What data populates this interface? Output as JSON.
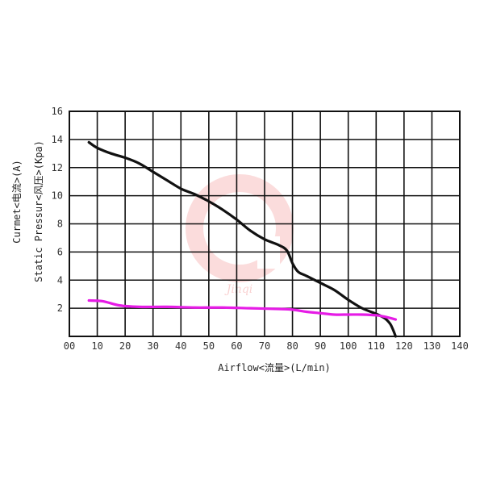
{
  "chart_data": {
    "type": "line",
    "xlabel": "Airflow<流量>(L/min)",
    "ylabel": "Static Pressur<风压>(Kpa)",
    "ylabel2": "Curmet<电流>(A)",
    "xlim": [
      0,
      140
    ],
    "ylim": [
      0,
      16
    ],
    "x_ticks": [
      "00",
      "10",
      "20",
      "30",
      "40",
      "50",
      "60",
      "70",
      "80",
      "90",
      "100",
      "110",
      "120",
      "130",
      "140"
    ],
    "y_ticks": [
      "16",
      "14",
      "12",
      "10",
      "8",
      "6",
      "4",
      "2"
    ],
    "x_grid_step": 10,
    "y_grid_step": 2,
    "grid": true,
    "watermark": "Jinqi",
    "colors": {
      "pressure": "#111111",
      "current": "#e61ce6",
      "ylabel2": "#e61ce6",
      "watermark": "#f08080"
    },
    "series": [
      {
        "key": "pressure",
        "values": [
          [
            7,
            13.8
          ],
          [
            10,
            13.4
          ],
          [
            15,
            13.0
          ],
          [
            20,
            12.7
          ],
          [
            25,
            12.3
          ],
          [
            30,
            11.7
          ],
          [
            35,
            11.1
          ],
          [
            40,
            10.5
          ],
          [
            45,
            10.1
          ],
          [
            50,
            9.6
          ],
          [
            55,
            9.0
          ],
          [
            60,
            8.3
          ],
          [
            65,
            7.5
          ],
          [
            70,
            6.9
          ],
          [
            75,
            6.5
          ],
          [
            78,
            6.1
          ],
          [
            80,
            5.2
          ],
          [
            82,
            4.6
          ],
          [
            85,
            4.3
          ],
          [
            90,
            3.8
          ],
          [
            95,
            3.3
          ],
          [
            100,
            2.6
          ],
          [
            105,
            2.0
          ],
          [
            110,
            1.6
          ],
          [
            113,
            1.3
          ],
          [
            115,
            0.9
          ],
          [
            116,
            0.5
          ],
          [
            117,
            0.0
          ]
        ]
      },
      {
        "key": "current",
        "values": [
          [
            7,
            2.55
          ],
          [
            12,
            2.5
          ],
          [
            18,
            2.2
          ],
          [
            25,
            2.1
          ],
          [
            35,
            2.1
          ],
          [
            45,
            2.05
          ],
          [
            55,
            2.05
          ],
          [
            65,
            2.0
          ],
          [
            75,
            1.95
          ],
          [
            80,
            1.9
          ],
          [
            85,
            1.75
          ],
          [
            90,
            1.65
          ],
          [
            95,
            1.55
          ],
          [
            100,
            1.55
          ],
          [
            105,
            1.55
          ],
          [
            110,
            1.5
          ],
          [
            113,
            1.4
          ],
          [
            117,
            1.2
          ]
        ]
      }
    ]
  }
}
